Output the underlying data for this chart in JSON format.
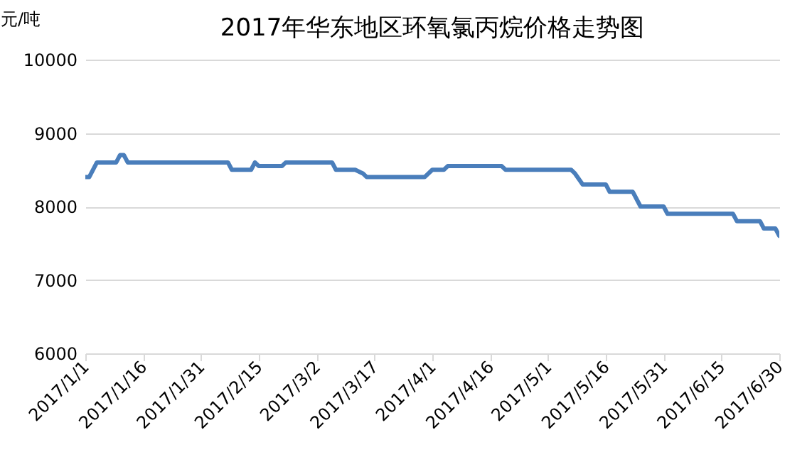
{
  "chart_data": {
    "type": "line",
    "title": "2017年华东地区环氧氯丙烷价格走势图",
    "ylabel": "元/吨",
    "x": [
      "2017-01-01",
      "2017-01-02",
      "2017-01-04",
      "2017-01-09",
      "2017-01-10",
      "2017-01-11",
      "2017-01-12",
      "2017-02-07",
      "2017-02-08",
      "2017-02-13",
      "2017-02-14",
      "2017-02-15",
      "2017-02-21",
      "2017-02-22",
      "2017-03-06",
      "2017-03-07",
      "2017-03-12",
      "2017-03-14",
      "2017-03-15",
      "2017-03-30",
      "2017-04-01",
      "2017-04-04",
      "2017-04-05",
      "2017-04-19",
      "2017-04-20",
      "2017-05-07",
      "2017-05-08",
      "2017-05-10",
      "2017-05-16",
      "2017-05-17",
      "2017-05-23",
      "2017-05-25",
      "2017-05-31",
      "2017-06-01",
      "2017-06-18",
      "2017-06-19",
      "2017-06-25",
      "2017-06-26",
      "2017-06-29",
      "2017-06-30"
    ],
    "series": [
      {
        "color": "#4a7ebb",
        "values": [
          8400,
          8400,
          8600,
          8600,
          8700,
          8700,
          8600,
          8600,
          8500,
          8500,
          8600,
          8550,
          8550,
          8600,
          8600,
          8500,
          8500,
          8450,
          8400,
          8400,
          8500,
          8500,
          8550,
          8550,
          8500,
          8500,
          8450,
          8300,
          8300,
          8200,
          8200,
          8000,
          8000,
          7900,
          7900,
          7800,
          7800,
          7700,
          7700,
          7600
        ]
      }
    ],
    "xlim": [
      "2017-01-01",
      "2017-06-30"
    ],
    "xticks": [
      {
        "value": "2017-01-01",
        "label": "2017/1/1"
      },
      {
        "value": "2017-01-16",
        "label": "2017/1/16"
      },
      {
        "value": "2017-01-31",
        "label": "2017/1/31"
      },
      {
        "value": "2017-02-15",
        "label": "2017/2/15"
      },
      {
        "value": "2017-03-02",
        "label": "2017/3/2"
      },
      {
        "value": "2017-03-17",
        "label": "2017/3/17"
      },
      {
        "value": "2017-04-01",
        "label": "2017/4/1"
      },
      {
        "value": "2017-04-16",
        "label": "2017/4/16"
      },
      {
        "value": "2017-05-01",
        "label": "2017/5/1"
      },
      {
        "value": "2017-05-16",
        "label": "2017/5/16"
      },
      {
        "value": "2017-05-31",
        "label": "2017/5/31"
      },
      {
        "value": "2017-06-15",
        "label": "2017/6/15"
      },
      {
        "value": "2017-06-30",
        "label": "2017/6/30"
      }
    ],
    "ylim": [
      6000,
      10000
    ],
    "yticks": [
      6000,
      7000,
      8000,
      9000,
      10000
    ],
    "grid": "y",
    "legend": false,
    "marker": "none",
    "line_style": "solid"
  }
}
